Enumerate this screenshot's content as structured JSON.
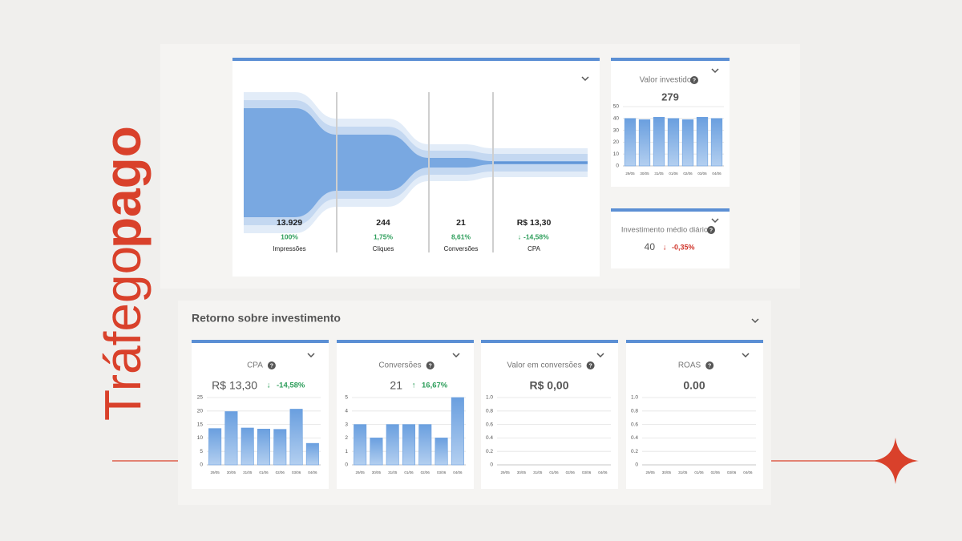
{
  "ui": {
    "side_title": {
      "word1": "Tráfego",
      "word2": "pago"
    },
    "funnel": {
      "steps": [
        {
          "value": "13.929",
          "rate": "100%",
          "label": "Impressões"
        },
        {
          "value": "244",
          "rate": "1,75%",
          "label": "Cliques"
        },
        {
          "value": "21",
          "rate": "8,61%",
          "label": "Conversões"
        },
        {
          "value": "R$ 13,30",
          "rate": "-14,58%",
          "label": "CPA"
        }
      ]
    },
    "valor_investido": {
      "title": "Valor investido",
      "total": "279"
    },
    "investimento_medio": {
      "title": "Investimento médio diário",
      "value": "40",
      "change": "-0,35%"
    },
    "roi": {
      "title": "Retorno sobre investimento",
      "cards": [
        {
          "title": "CPA",
          "value": "R$ 13,30",
          "change": "-14,58%"
        },
        {
          "title": "Conversões",
          "value": "21",
          "change": "16,67%"
        },
        {
          "title": "Valor em conversões",
          "value": "R$ 0,00"
        },
        {
          "title": "ROAS",
          "value": "0.00"
        }
      ]
    }
  },
  "chart_data": [
    {
      "type": "bar",
      "categories": [
        "29/05",
        "30/05",
        "31/05",
        "01/06",
        "02/06",
        "03/06",
        "04/06"
      ],
      "values": [
        40,
        39,
        41,
        40,
        39,
        41,
        40
      ],
      "color": "#6a9fdf",
      "ylim": [
        0,
        50
      ],
      "yticks": [
        0,
        10,
        20,
        30,
        40,
        50
      ],
      "grid": true
    },
    {
      "type": "bar",
      "categories": [
        "29/05",
        "30/05",
        "31/05",
        "01/06",
        "02/06",
        "03/06",
        "04/06"
      ],
      "values": [
        13.5,
        19.8,
        13.7,
        13.3,
        13.2,
        20.7,
        8
      ],
      "color": "#6a9fdf",
      "ylim": [
        0,
        25
      ],
      "yticks": [
        0,
        5,
        10,
        15,
        20,
        25
      ],
      "grid": true
    },
    {
      "type": "bar",
      "categories": [
        "29/05",
        "30/05",
        "31/05",
        "01/06",
        "02/06",
        "03/06",
        "04/06"
      ],
      "values": [
        3,
        2,
        3,
        3,
        3,
        2,
        5
      ],
      "color": "#6a9fdf",
      "ylim": [
        0,
        5
      ],
      "yticks": [
        0,
        1,
        2,
        3,
        4,
        5
      ],
      "grid": true
    },
    {
      "type": "bar",
      "categories": [
        "29/05",
        "30/05",
        "31/05",
        "01/06",
        "02/06",
        "03/06",
        "04/06"
      ],
      "values": [
        0,
        0,
        0,
        0,
        0,
        0,
        0
      ],
      "color": "#6a9fdf",
      "ylim": [
        0,
        1
      ],
      "yticks": [
        0,
        0.2,
        0.4,
        0.6,
        0.8,
        {
          "value": 1,
          "label": "1.0"
        }
      ],
      "grid": true
    },
    {
      "type": "bar",
      "categories": [
        "29/05",
        "30/05",
        "31/05",
        "01/06",
        "02/06",
        "03/06",
        "04/06"
      ],
      "values": [
        0,
        0,
        0,
        0,
        0,
        0,
        0
      ],
      "color": "#6a9fdf",
      "ylim": [
        0,
        1
      ],
      "yticks": [
        0,
        0.2,
        0.4,
        0.6,
        0.8,
        {
          "value": 1,
          "label": "1.0"
        }
      ],
      "grid": true
    }
  ]
}
